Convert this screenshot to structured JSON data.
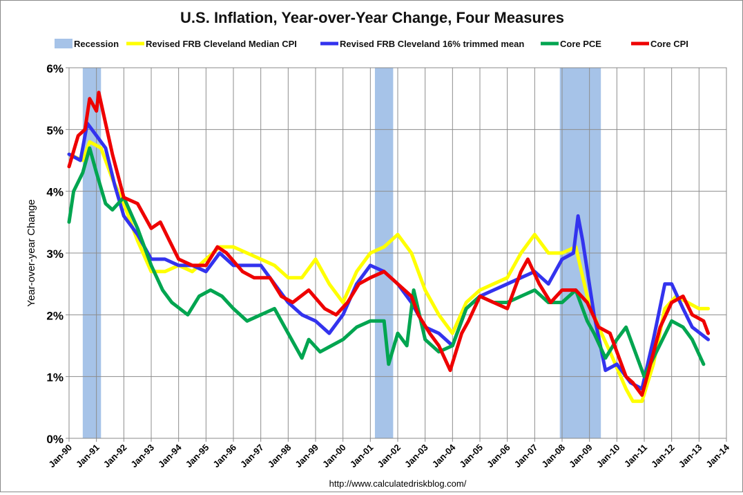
{
  "chart_data": {
    "type": "line",
    "title": "U.S. Inflation, Year-over-Year Change, Four Measures",
    "ylabel": "Year-over-year Change",
    "xlabel": "",
    "source": "http://www.calculatedriskblog.com/",
    "ylim": [
      0,
      6
    ],
    "yticks": [
      "0%",
      "1%",
      "2%",
      "3%",
      "4%",
      "5%",
      "6%"
    ],
    "xlim": [
      "1990-01",
      "2014-01"
    ],
    "xticks": [
      "Jan-90",
      "Jan-91",
      "Jan-92",
      "Jan-93",
      "Jan-94",
      "Jan-95",
      "Jan-96",
      "Jan-97",
      "Jan-98",
      "Jan-99",
      "Jan-00",
      "Jan-01",
      "Jan-02",
      "Jan-03",
      "Jan-04",
      "Jan-05",
      "Jan-06",
      "Jan-07",
      "Jan-08",
      "Jan-09",
      "Jan-10",
      "Jan-11",
      "Jan-12",
      "Jan-13",
      "Jan-14"
    ],
    "grid": true,
    "legend_placement": "top",
    "recession": {
      "name": "Recession",
      "color": "#a6c3e8",
      "periods": [
        [
          "1990-07",
          "1991-03"
        ],
        [
          "2001-03",
          "2001-11"
        ],
        [
          "2007-12",
          "2009-06"
        ]
      ]
    },
    "series": [
      {
        "name": "Revised FRB Cleveland Median CPI",
        "color": "#ffff00",
        "points": [
          [
            "1990-01",
            4.6
          ],
          [
            "1990-07",
            4.5
          ],
          [
            "1990-10",
            4.8
          ],
          [
            "1991-03",
            4.7
          ],
          [
            "1991-08",
            4.2
          ],
          [
            "1992-01",
            3.8
          ],
          [
            "1992-07",
            3.2
          ],
          [
            "1993-01",
            2.7
          ],
          [
            "1993-07",
            2.7
          ],
          [
            "1994-01",
            2.8
          ],
          [
            "1994-07",
            2.7
          ],
          [
            "1995-01",
            2.9
          ],
          [
            "1995-07",
            3.1
          ],
          [
            "1996-01",
            3.1
          ],
          [
            "1996-07",
            3.0
          ],
          [
            "1997-01",
            2.9
          ],
          [
            "1997-07",
            2.8
          ],
          [
            "1998-01",
            2.6
          ],
          [
            "1998-07",
            2.6
          ],
          [
            "1999-01",
            2.9
          ],
          [
            "1999-07",
            2.5
          ],
          [
            "2000-01",
            2.2
          ],
          [
            "2000-07",
            2.7
          ],
          [
            "2001-01",
            3.0
          ],
          [
            "2001-07",
            3.1
          ],
          [
            "2002-01",
            3.3
          ],
          [
            "2002-07",
            3.0
          ],
          [
            "2003-01",
            2.4
          ],
          [
            "2003-07",
            2.0
          ],
          [
            "2004-01",
            1.7
          ],
          [
            "2004-07",
            2.2
          ],
          [
            "2005-01",
            2.4
          ],
          [
            "2005-07",
            2.5
          ],
          [
            "2006-01",
            2.6
          ],
          [
            "2006-07",
            3.0
          ],
          [
            "2007-01",
            3.3
          ],
          [
            "2007-07",
            3.0
          ],
          [
            "2008-01",
            3.0
          ],
          [
            "2008-07",
            3.1
          ],
          [
            "2008-12",
            2.3
          ],
          [
            "2009-05",
            1.8
          ],
          [
            "2009-10",
            1.4
          ],
          [
            "2010-05",
            0.8
          ],
          [
            "2010-08",
            0.6
          ],
          [
            "2010-12",
            0.6
          ],
          [
            "2011-05",
            1.2
          ],
          [
            "2011-10",
            2.1
          ],
          [
            "2012-03",
            2.3
          ],
          [
            "2012-08",
            2.2
          ],
          [
            "2013-01",
            2.1
          ],
          [
            "2013-05",
            2.1
          ]
        ]
      },
      {
        "name": "Revised FRB Cleveland 16% trimmed mean",
        "color": "#3333ee",
        "points": [
          [
            "1990-01",
            4.6
          ],
          [
            "1990-06",
            4.5
          ],
          [
            "1990-09",
            5.1
          ],
          [
            "1991-01",
            4.9
          ],
          [
            "1991-05",
            4.7
          ],
          [
            "1991-09",
            4.1
          ],
          [
            "1992-01",
            3.6
          ],
          [
            "1992-07",
            3.3
          ],
          [
            "1993-01",
            2.9
          ],
          [
            "1993-07",
            2.9
          ],
          [
            "1994-01",
            2.8
          ],
          [
            "1994-07",
            2.8
          ],
          [
            "1995-01",
            2.7
          ],
          [
            "1995-07",
            3.0
          ],
          [
            "1996-01",
            2.8
          ],
          [
            "1996-07",
            2.8
          ],
          [
            "1997-01",
            2.8
          ],
          [
            "1997-07",
            2.5
          ],
          [
            "1998-01",
            2.2
          ],
          [
            "1998-07",
            2.0
          ],
          [
            "1999-01",
            1.9
          ],
          [
            "1999-07",
            1.7
          ],
          [
            "2000-01",
            2.0
          ],
          [
            "2000-07",
            2.5
          ],
          [
            "2001-01",
            2.8
          ],
          [
            "2001-07",
            2.7
          ],
          [
            "2002-01",
            2.5
          ],
          [
            "2002-07",
            2.2
          ],
          [
            "2003-01",
            1.8
          ],
          [
            "2003-07",
            1.7
          ],
          [
            "2004-01",
            1.5
          ],
          [
            "2004-07",
            2.1
          ],
          [
            "2005-01",
            2.3
          ],
          [
            "2005-07",
            2.4
          ],
          [
            "2006-01",
            2.5
          ],
          [
            "2006-07",
            2.6
          ],
          [
            "2007-01",
            2.7
          ],
          [
            "2007-07",
            2.5
          ],
          [
            "2008-01",
            2.9
          ],
          [
            "2008-06",
            3.0
          ],
          [
            "2008-08",
            3.6
          ],
          [
            "2008-10",
            3.2
          ],
          [
            "2009-03",
            2.0
          ],
          [
            "2009-08",
            1.1
          ],
          [
            "2010-01",
            1.2
          ],
          [
            "2010-07",
            0.9
          ],
          [
            "2010-12",
            0.8
          ],
          [
            "2011-05",
            1.6
          ],
          [
            "2011-10",
            2.5
          ],
          [
            "2012-01",
            2.5
          ],
          [
            "2012-06",
            2.1
          ],
          [
            "2012-10",
            1.8
          ],
          [
            "2013-05",
            1.6
          ]
        ]
      },
      {
        "name": "Core PCE",
        "color": "#00a550",
        "points": [
          [
            "1990-01",
            3.5
          ],
          [
            "1990-03",
            4.0
          ],
          [
            "1990-07",
            4.3
          ],
          [
            "1990-10",
            4.7
          ],
          [
            "1991-01",
            4.3
          ],
          [
            "1991-05",
            3.8
          ],
          [
            "1991-08",
            3.7
          ],
          [
            "1992-01",
            3.9
          ],
          [
            "1992-07",
            3.4
          ],
          [
            "1993-01",
            2.8
          ],
          [
            "1993-06",
            2.4
          ],
          [
            "1993-10",
            2.2
          ],
          [
            "1994-05",
            2.0
          ],
          [
            "1994-10",
            2.3
          ],
          [
            "1995-03",
            2.4
          ],
          [
            "1995-08",
            2.3
          ],
          [
            "1996-01",
            2.1
          ],
          [
            "1996-07",
            1.9
          ],
          [
            "1997-01",
            2.0
          ],
          [
            "1997-07",
            2.1
          ],
          [
            "1998-01",
            1.7
          ],
          [
            "1998-07",
            1.3
          ],
          [
            "1998-10",
            1.6
          ],
          [
            "1999-03",
            1.4
          ],
          [
            "1999-08",
            1.5
          ],
          [
            "2000-01",
            1.6
          ],
          [
            "2000-07",
            1.8
          ],
          [
            "2001-01",
            1.9
          ],
          [
            "2001-07",
            1.9
          ],
          [
            "2001-09",
            1.2
          ],
          [
            "2002-01",
            1.7
          ],
          [
            "2002-05",
            1.5
          ],
          [
            "2002-08",
            2.4
          ],
          [
            "2003-01",
            1.6
          ],
          [
            "2003-07",
            1.4
          ],
          [
            "2004-01",
            1.5
          ],
          [
            "2004-07",
            2.1
          ],
          [
            "2005-01",
            2.3
          ],
          [
            "2005-07",
            2.2
          ],
          [
            "2006-01",
            2.2
          ],
          [
            "2006-07",
            2.3
          ],
          [
            "2007-01",
            2.4
          ],
          [
            "2007-07",
            2.2
          ],
          [
            "2008-01",
            2.2
          ],
          [
            "2008-07",
            2.4
          ],
          [
            "2008-12",
            1.9
          ],
          [
            "2009-03",
            1.7
          ],
          [
            "2009-08",
            1.3
          ],
          [
            "2010-01",
            1.6
          ],
          [
            "2010-05",
            1.8
          ],
          [
            "2010-09",
            1.4
          ],
          [
            "2011-01",
            1.0
          ],
          [
            "2011-05",
            1.3
          ],
          [
            "2011-09",
            1.6
          ],
          [
            "2012-01",
            1.9
          ],
          [
            "2012-06",
            1.8
          ],
          [
            "2012-10",
            1.6
          ],
          [
            "2013-03",
            1.2
          ]
        ]
      },
      {
        "name": "Core CPI",
        "color": "#ee0000",
        "points": [
          [
            "1990-01",
            4.4
          ],
          [
            "1990-05",
            4.9
          ],
          [
            "1990-08",
            5.0
          ],
          [
            "1990-10",
            5.5
          ],
          [
            "1991-01",
            5.3
          ],
          [
            "1991-02",
            5.6
          ],
          [
            "1991-05",
            5.1
          ],
          [
            "1991-08",
            4.6
          ],
          [
            "1992-01",
            3.9
          ],
          [
            "1992-07",
            3.8
          ],
          [
            "1993-01",
            3.4
          ],
          [
            "1993-05",
            3.5
          ],
          [
            "1993-09",
            3.2
          ],
          [
            "1994-01",
            2.9
          ],
          [
            "1994-07",
            2.8
          ],
          [
            "1995-01",
            2.8
          ],
          [
            "1995-06",
            3.1
          ],
          [
            "1995-10",
            3.0
          ],
          [
            "1996-05",
            2.7
          ],
          [
            "1996-10",
            2.6
          ],
          [
            "1997-05",
            2.6
          ],
          [
            "1997-10",
            2.3
          ],
          [
            "1998-03",
            2.2
          ],
          [
            "1998-10",
            2.4
          ],
          [
            "1999-05",
            2.1
          ],
          [
            "1999-10",
            2.0
          ],
          [
            "2000-03",
            2.2
          ],
          [
            "2000-08",
            2.5
          ],
          [
            "2001-01",
            2.6
          ],
          [
            "2001-07",
            2.7
          ],
          [
            "2002-01",
            2.5
          ],
          [
            "2002-07",
            2.3
          ],
          [
            "2002-10",
            2.0
          ],
          [
            "2003-03",
            1.7
          ],
          [
            "2003-07",
            1.5
          ],
          [
            "2003-12",
            1.1
          ],
          [
            "2004-05",
            1.7
          ],
          [
            "2004-08",
            1.9
          ],
          [
            "2005-01",
            2.3
          ],
          [
            "2005-07",
            2.2
          ],
          [
            "2006-01",
            2.1
          ],
          [
            "2006-07",
            2.7
          ],
          [
            "2006-10",
            2.9
          ],
          [
            "2007-03",
            2.5
          ],
          [
            "2007-08",
            2.2
          ],
          [
            "2008-01",
            2.4
          ],
          [
            "2008-07",
            2.4
          ],
          [
            "2008-12",
            2.2
          ],
          [
            "2009-05",
            1.8
          ],
          [
            "2009-10",
            1.7
          ],
          [
            "2010-05",
            1.0
          ],
          [
            "2010-08",
            0.9
          ],
          [
            "2010-12",
            0.7
          ],
          [
            "2011-03",
            1.1
          ],
          [
            "2011-08",
            1.8
          ],
          [
            "2012-01",
            2.2
          ],
          [
            "2012-06",
            2.3
          ],
          [
            "2012-10",
            2.0
          ],
          [
            "2013-03",
            1.9
          ],
          [
            "2013-05",
            1.7
          ]
        ]
      }
    ]
  }
}
